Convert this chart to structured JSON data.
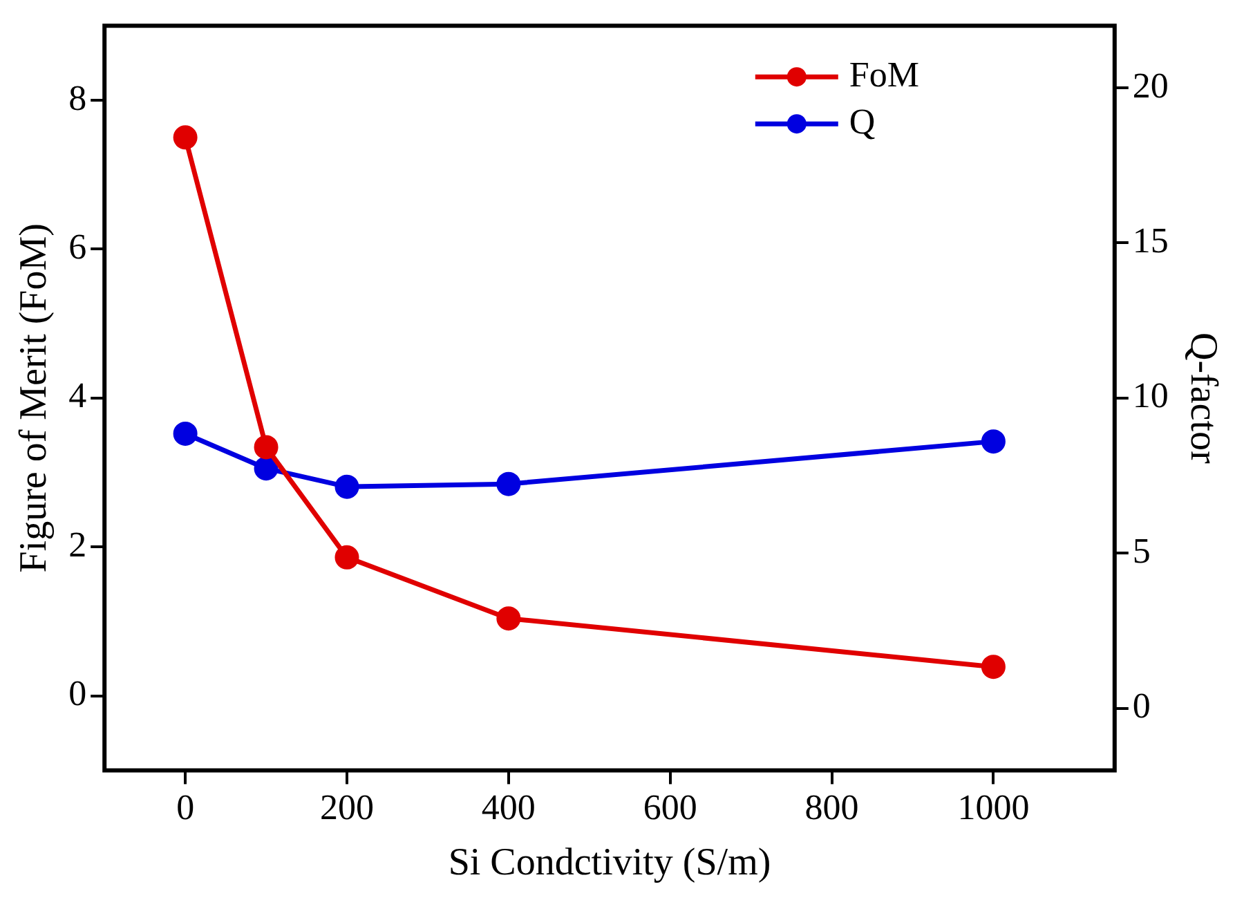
{
  "chart_data": {
    "type": "line",
    "xlabel": "Si Condctivity (S/m)",
    "ylabel": "Figure of Merit (FoM)",
    "y2label": "Q-factor",
    "x": [
      0,
      100,
      200,
      400,
      1000
    ],
    "series": [
      {
        "name": "FoM",
        "color": "#e00000",
        "values": [
          7.5,
          3.34,
          1.86,
          1.04,
          0.39
        ]
      },
      {
        "name": "Q",
        "color": "#0000e0",
        "axis": "y2",
        "values": [
          8.85,
          7.73,
          7.14,
          7.23,
          8.6
        ]
      }
    ],
    "xlim": [
      -100,
      1150
    ],
    "xticks": [
      0,
      200,
      400,
      600,
      800,
      1000
    ],
    "ylim": [
      -1,
      9
    ],
    "yticks": [
      0,
      2,
      4,
      6,
      8
    ],
    "y2lim": [
      -2,
      22
    ],
    "y2ticks": [
      0,
      5,
      10,
      15,
      20
    ],
    "legend": "top right",
    "marker": "circle",
    "line_style": "solid",
    "grid": false
  }
}
